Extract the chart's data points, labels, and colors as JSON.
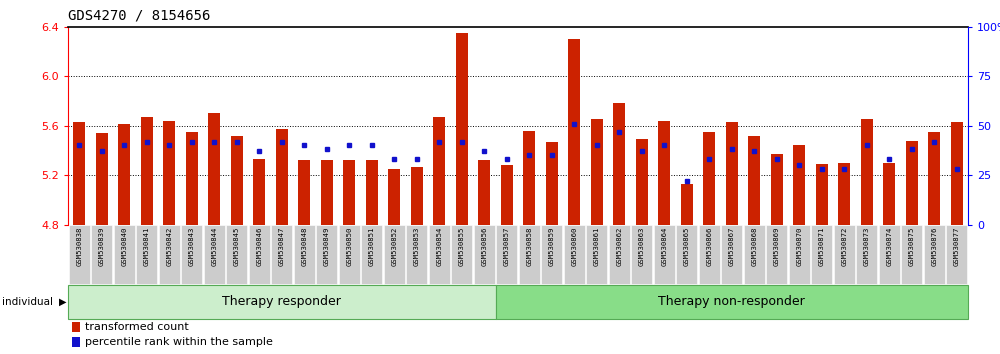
{
  "title": "GDS4270 / 8154656",
  "samples": [
    "GSM530838",
    "GSM530839",
    "GSM530840",
    "GSM530841",
    "GSM530842",
    "GSM530843",
    "GSM530844",
    "GSM530845",
    "GSM530846",
    "GSM530847",
    "GSM530848",
    "GSM530849",
    "GSM530850",
    "GSM530851",
    "GSM530852",
    "GSM530853",
    "GSM530854",
    "GSM530855",
    "GSM530856",
    "GSM530857",
    "GSM530858",
    "GSM530859",
    "GSM530860",
    "GSM530861",
    "GSM530862",
    "GSM530863",
    "GSM530864",
    "GSM530865",
    "GSM530866",
    "GSM530867",
    "GSM530868",
    "GSM530869",
    "GSM530870",
    "GSM530871",
    "GSM530872",
    "GSM530873",
    "GSM530874",
    "GSM530875",
    "GSM530876",
    "GSM530877"
  ],
  "transformed_count": [
    5.63,
    5.54,
    5.61,
    5.67,
    5.64,
    5.55,
    5.7,
    5.52,
    5.33,
    5.57,
    5.32,
    5.32,
    5.32,
    5.32,
    5.25,
    5.27,
    5.67,
    6.35,
    5.32,
    5.28,
    5.56,
    5.47,
    6.3,
    5.65,
    5.78,
    5.49,
    5.64,
    5.13,
    5.55,
    5.63,
    5.52,
    5.37,
    5.44,
    5.29,
    5.3,
    5.65,
    5.3,
    5.48,
    5.55,
    5.63
  ],
  "percentile_rank": [
    40,
    37,
    40,
    42,
    40,
    42,
    42,
    42,
    37,
    42,
    40,
    38,
    40,
    40,
    33,
    33,
    42,
    42,
    37,
    33,
    35,
    35,
    51,
    40,
    47,
    37,
    40,
    22,
    33,
    38,
    37,
    33,
    30,
    28,
    28,
    40,
    33,
    38,
    42,
    28
  ],
  "group_split": 19,
  "group_labels": [
    "Therapy responder",
    "Therapy non-responder"
  ],
  "ymin": 4.8,
  "ymax": 6.4,
  "yticks_left": [
    4.8,
    5.2,
    5.6,
    6.0,
    6.4
  ],
  "yticks_right": [
    0,
    25,
    50,
    75,
    100
  ],
  "bar_color": "#cc2200",
  "dot_color": "#1111cc",
  "grid_lines": [
    5.2,
    5.6,
    6.0
  ],
  "bar_width": 0.55,
  "responder_color": "#cceecc",
  "non_responder_color": "#88dd88",
  "label_bg_color": "#cccccc",
  "group_border_color": "#55aa55"
}
